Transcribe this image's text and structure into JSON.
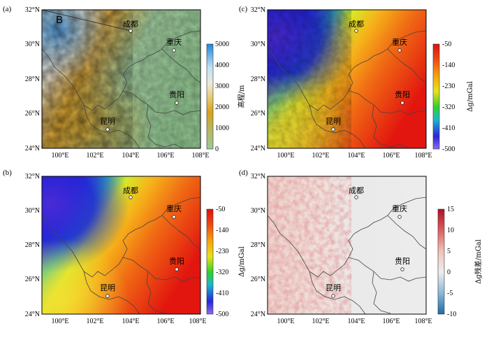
{
  "lat_ticks": [
    "24°N",
    "26°N",
    "28°N",
    "30°N",
    "32°N"
  ],
  "lon_ticks": [
    "100°E",
    "102°E",
    "104°E",
    "106°E",
    "108°E"
  ],
  "cities": {
    "chengdu": "成都",
    "chongqing": "重庆",
    "guiyang": "贵阳",
    "kunming": "昆明"
  },
  "panels": [
    {
      "label": "(a)",
      "type": "elevation",
      "profile_label": "B",
      "colorbar_title": "高程/m",
      "colorbar_ticks": [
        "0",
        "1000",
        "2000",
        "3000",
        "4000",
        "5000"
      ],
      "colorbar_range": [
        0,
        5000
      ]
    },
    {
      "label": "(b)",
      "type": "gravity",
      "colorbar_title": "Δg/mGal",
      "colorbar_ticks": [
        "-500",
        "-410",
        "-320",
        "-230",
        "-140",
        "-50"
      ],
      "colorbar_range": [
        -500,
        -50
      ]
    },
    {
      "label": "(c)",
      "type": "gravity",
      "colorbar_title": "Δg/mGal",
      "colorbar_ticks": [
        "-500",
        "-410",
        "-320",
        "-230",
        "-140",
        "-50"
      ],
      "colorbar_range": [
        -500,
        -50
      ]
    },
    {
      "label": "(d)",
      "type": "residual",
      "colorbar_title": "Δg残差/mGal",
      "colorbar_ticks": [
        "-10",
        "-5",
        "0",
        "5",
        "10",
        "15"
      ],
      "colorbar_range": [
        -10,
        15
      ]
    }
  ],
  "colors": {
    "gravity_ramp": [
      "#7a5cf0",
      "#2a25d8",
      "#1fb9c9",
      "#32d32a",
      "#e8e31a",
      "#f5a20d",
      "#ee4a12",
      "#e00f0f"
    ],
    "elevation_ramp": [
      "#9fc79a",
      "#c99a1a",
      "#e2bf5a",
      "#efe3c8",
      "#cfe7f3",
      "#86c7ec",
      "#1e86d6"
    ],
    "residual_ramp": [
      "#1f6fb0",
      "#b9d5e8",
      "#eeeeee",
      "#f2c9c0",
      "#e06a6a",
      "#b8102a"
    ]
  }
}
